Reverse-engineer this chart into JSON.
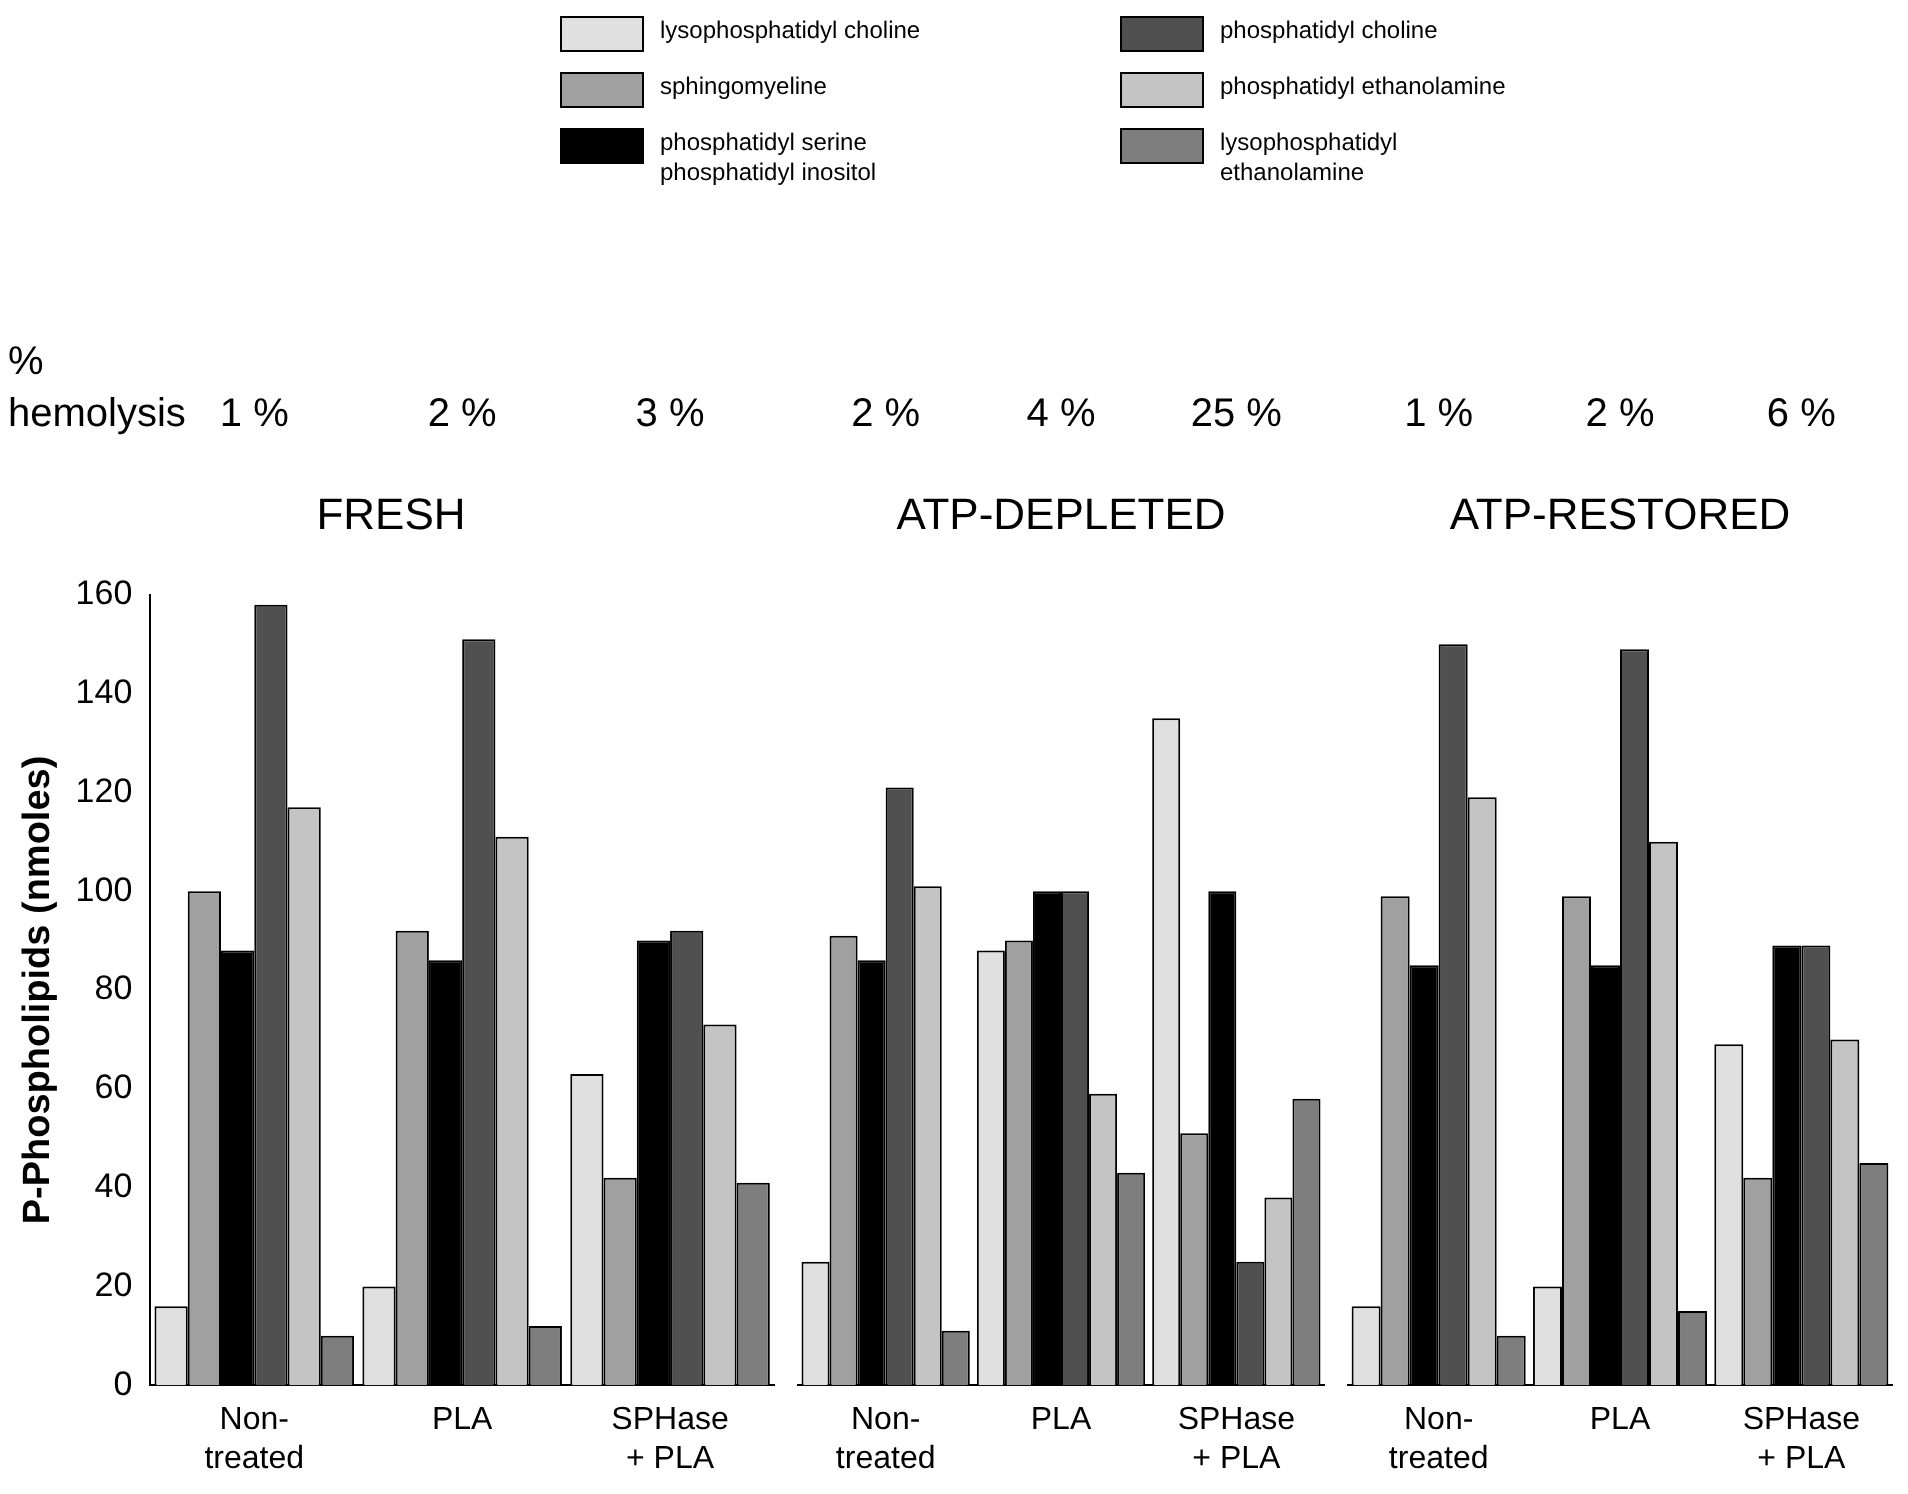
{
  "chart_data": [
    {
      "type": "bar",
      "title": "FRESH",
      "ylabel": "P-Phospholipids (nmoles)",
      "categories": [
        "Non- treated",
        "PLA",
        "SPHase + PLA"
      ],
      "ylim": [
        0,
        160
      ],
      "yticks": [
        0,
        20,
        40,
        60,
        80,
        100,
        120,
        140,
        160
      ],
      "grid": false,
      "legend": "top",
      "annotations": [
        "% hemolysis",
        "1 %",
        "2 %",
        "3 %"
      ],
      "series": [
        {
          "name": "lysophosphatidyl choline",
          "color": "#e0e0e0",
          "values": [
            16,
            20,
            63
          ]
        },
        {
          "name": "sphingomyeline",
          "color": "#a0a0a0",
          "values": [
            100,
            92,
            42
          ]
        },
        {
          "name": "phosphatidyl serine phosphatidyl inositol",
          "color": "#000000",
          "values": [
            88,
            86,
            90
          ]
        },
        {
          "name": "phosphatidyl choline",
          "color": "#505050",
          "values": [
            158,
            151,
            92
          ]
        },
        {
          "name": "phosphatidyl ethanolamine",
          "color": "#c4c4c4",
          "values": [
            117,
            111,
            73
          ]
        },
        {
          "name": "lysophosphatidyl ethanolamine",
          "color": "#7e7e7e",
          "values": [
            10,
            12,
            41
          ]
        }
      ]
    },
    {
      "type": "bar",
      "title": "ATP-DEPLETED",
      "categories": [
        "Non- treated",
        "PLA",
        "SPHase + PLA"
      ],
      "ylim": [
        0,
        160
      ],
      "grid": false,
      "tick_labels": "x",
      "annotations": [
        "2 %",
        "4 %",
        "25 %"
      ],
      "series": [
        {
          "color": "#e0e0e0",
          "values": [
            25,
            88,
            135
          ]
        },
        {
          "color": "#a0a0a0",
          "values": [
            91,
            90,
            51
          ]
        },
        {
          "color": "#000000",
          "values": [
            86,
            100,
            100
          ]
        },
        {
          "color": "#505050",
          "values": [
            121,
            100,
            25
          ]
        },
        {
          "color": "#c4c4c4",
          "values": [
            101,
            59,
            38
          ]
        },
        {
          "color": "#7e7e7e",
          "values": [
            11,
            43,
            58
          ]
        }
      ]
    },
    {
      "type": "bar",
      "title": "ATP-RESTORED",
      "categories": [
        "Non- treated",
        "PLA",
        "SPHase + PLA"
      ],
      "ylim": [
        0,
        160
      ],
      "grid": false,
      "tick_labels": "x",
      "annotations": [
        "1 %",
        "2 %",
        "6 %"
      ],
      "series": [
        {
          "color": "#e0e0e0",
          "values": [
            16,
            20,
            69
          ]
        },
        {
          "color": "#a0a0a0",
          "values": [
            99,
            99,
            42
          ]
        },
        {
          "color": "#000000",
          "values": [
            85,
            85,
            89
          ]
        },
        {
          "color": "#505050",
          "values": [
            150,
            149,
            89
          ]
        },
        {
          "color": "#c4c4c4",
          "values": [
            119,
            110,
            70
          ]
        },
        {
          "color": "#7e7e7e",
          "values": [
            10,
            15,
            45
          ]
        }
      ]
    }
  ]
}
